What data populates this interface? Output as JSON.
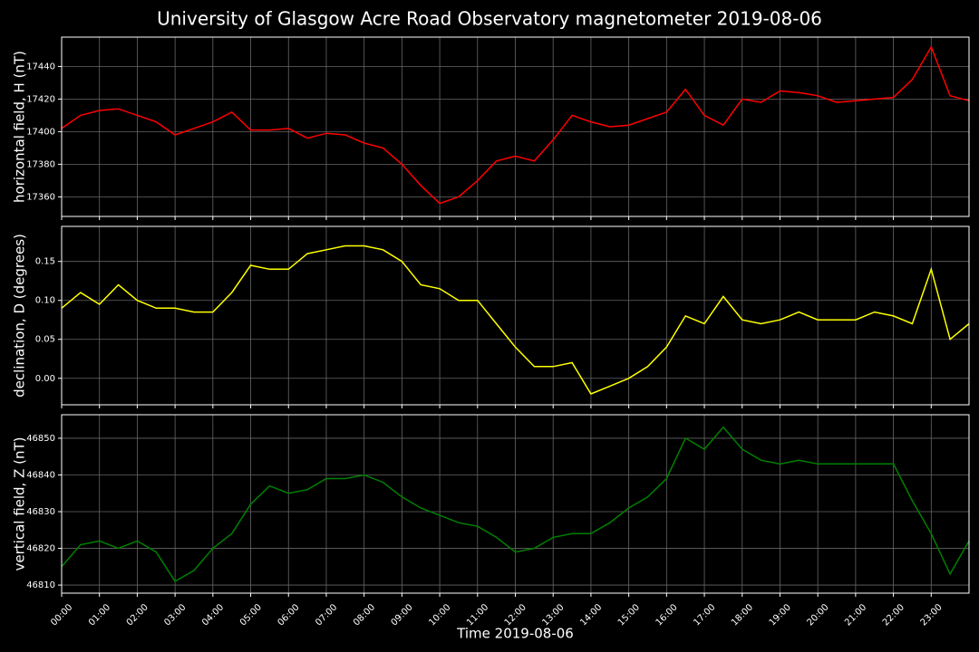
{
  "title": "University of Glasgow Acre Road Observatory magnetometer 2019-08-06",
  "chart_data": [
    {
      "type": "line",
      "ylabel": "horizontal field, H (nT)",
      "color": "#ff0000",
      "grid": true,
      "xlim": [
        0,
        24
      ],
      "ylim": [
        17348,
        17458
      ],
      "yticks": [
        17360,
        17380,
        17400,
        17420,
        17440
      ],
      "x": [
        0,
        0.5,
        1,
        1.5,
        2,
        2.5,
        3,
        3.5,
        4,
        4.5,
        5,
        5.5,
        6,
        6.5,
        7,
        7.5,
        8,
        8.5,
        9,
        9.5,
        10,
        10.5,
        11,
        11.5,
        12,
        12.5,
        13,
        13.5,
        14,
        14.5,
        15,
        15.5,
        16,
        16.5,
        17,
        17.5,
        18,
        18.5,
        19,
        19.5,
        20,
        20.5,
        21,
        21.5,
        22,
        22.5,
        23,
        23.5,
        24
      ],
      "values": [
        17402,
        17410,
        17413,
        17414,
        17410,
        17406,
        17398,
        17402,
        17406,
        17412,
        17401,
        17401,
        17402,
        17396,
        17399,
        17398,
        17393,
        17390,
        17380,
        17367,
        17356,
        17360,
        17370,
        17382,
        17385,
        17382,
        17395,
        17410,
        17406,
        17403,
        17404,
        17408,
        17412,
        17426,
        17410,
        17404,
        17420,
        17418,
        17425,
        17424,
        17422,
        17418,
        17419,
        17420,
        17421,
        17432,
        17452,
        17422,
        17419
      ]
    },
    {
      "type": "line",
      "ylabel": "declination, D (degrees)",
      "color": "#ffff00",
      "grid": true,
      "xlim": [
        0,
        24
      ],
      "ylim": [
        -0.034,
        0.195
      ],
      "yticks": [
        {
          "value": 0,
          "label": "0.00"
        },
        0.05,
        {
          "value": 0.1,
          "label": "0.10"
        },
        0.15
      ],
      "x": [
        0,
        0.5,
        1,
        1.5,
        2,
        2.5,
        3,
        3.5,
        4,
        4.5,
        5,
        5.5,
        6,
        6.5,
        7,
        7.5,
        8,
        8.5,
        9,
        9.5,
        10,
        10.5,
        11,
        11.5,
        12,
        12.5,
        13,
        13.5,
        14,
        14.5,
        15,
        15.5,
        16,
        16.5,
        17,
        17.5,
        18,
        18.5,
        19,
        19.5,
        20,
        20.5,
        21,
        21.5,
        22,
        22.5,
        23,
        23.5,
        24
      ],
      "values": [
        0.09,
        0.11,
        0.095,
        0.12,
        0.1,
        0.09,
        0.09,
        0.085,
        0.085,
        0.11,
        0.145,
        0.14,
        0.14,
        0.16,
        0.165,
        0.17,
        0.17,
        0.165,
        0.15,
        0.12,
        0.115,
        0.1,
        0.1,
        0.07,
        0.04,
        0.015,
        0.015,
        0.02,
        -0.02,
        -0.01,
        0,
        0.015,
        0.04,
        0.08,
        0.07,
        0.105,
        0.075,
        0.07,
        0.075,
        0.085,
        0.075,
        0.075,
        0.075,
        0.085,
        0.08,
        0.07,
        0.14,
        0.05,
        0.07
      ]
    },
    {
      "type": "line",
      "ylabel": "vertical field, Z (nT)",
      "xlabel": "Time 2019-08-06",
      "color": "#008000",
      "grid": true,
      "xlim": [
        0,
        24
      ],
      "ylim": [
        46807.8,
        46856.4
      ],
      "yticks": [
        46810,
        46820,
        46830,
        46840,
        46850
      ],
      "xticks": [
        {
          "value": 0,
          "label": "00:00"
        },
        {
          "value": 1,
          "label": "01:00"
        },
        {
          "value": 2,
          "label": "02:00"
        },
        {
          "value": 3,
          "label": "03:00"
        },
        {
          "value": 4,
          "label": "04:00"
        },
        {
          "value": 5,
          "label": "05:00"
        },
        {
          "value": 6,
          "label": "06:00"
        },
        {
          "value": 7,
          "label": "07:00"
        },
        {
          "value": 8,
          "label": "08:00"
        },
        {
          "value": 9,
          "label": "09:00"
        },
        {
          "value": 10,
          "label": "10:00"
        },
        {
          "value": 11,
          "label": "11:00"
        },
        {
          "value": 12,
          "label": "12:00"
        },
        {
          "value": 13,
          "label": "13:00"
        },
        {
          "value": 14,
          "label": "14:00"
        },
        {
          "value": 15,
          "label": "15:00"
        },
        {
          "value": 16,
          "label": "16:00"
        },
        {
          "value": 17,
          "label": "17:00"
        },
        {
          "value": 18,
          "label": "18:00"
        },
        {
          "value": 19,
          "label": "19:00"
        },
        {
          "value": 20,
          "label": "20:00"
        },
        {
          "value": 21,
          "label": "21:00"
        },
        {
          "value": 22,
          "label": "22:00"
        },
        {
          "value": 23,
          "label": "23:00"
        }
      ],
      "x": [
        0,
        0.5,
        1,
        1.5,
        2,
        2.5,
        3,
        3.5,
        4,
        4.5,
        5,
        5.5,
        6,
        6.5,
        7,
        7.5,
        8,
        8.5,
        9,
        9.5,
        10,
        10.5,
        11,
        11.5,
        12,
        12.5,
        13,
        13.5,
        14,
        14.5,
        15,
        15.5,
        16,
        16.5,
        17,
        17.5,
        18,
        18.5,
        19,
        19.5,
        20,
        20.5,
        21,
        21.5,
        22,
        22.5,
        23,
        23.5,
        24
      ],
      "values": [
        46815,
        46821,
        46822,
        46820,
        46822,
        46819,
        46811,
        46814,
        46820,
        46824,
        46832,
        46837,
        46835,
        46836,
        46839,
        46839,
        46840,
        46838,
        46834,
        46831,
        46829,
        46827,
        46826,
        46823,
        46819,
        46820,
        46823,
        46824,
        46824,
        46827,
        46831,
        46834,
        46839,
        46850,
        46847,
        46853,
        46847,
        46844,
        46843,
        46844,
        46843,
        46843,
        46843,
        46843,
        46843,
        46833,
        46824,
        46813,
        46822
      ]
    }
  ]
}
